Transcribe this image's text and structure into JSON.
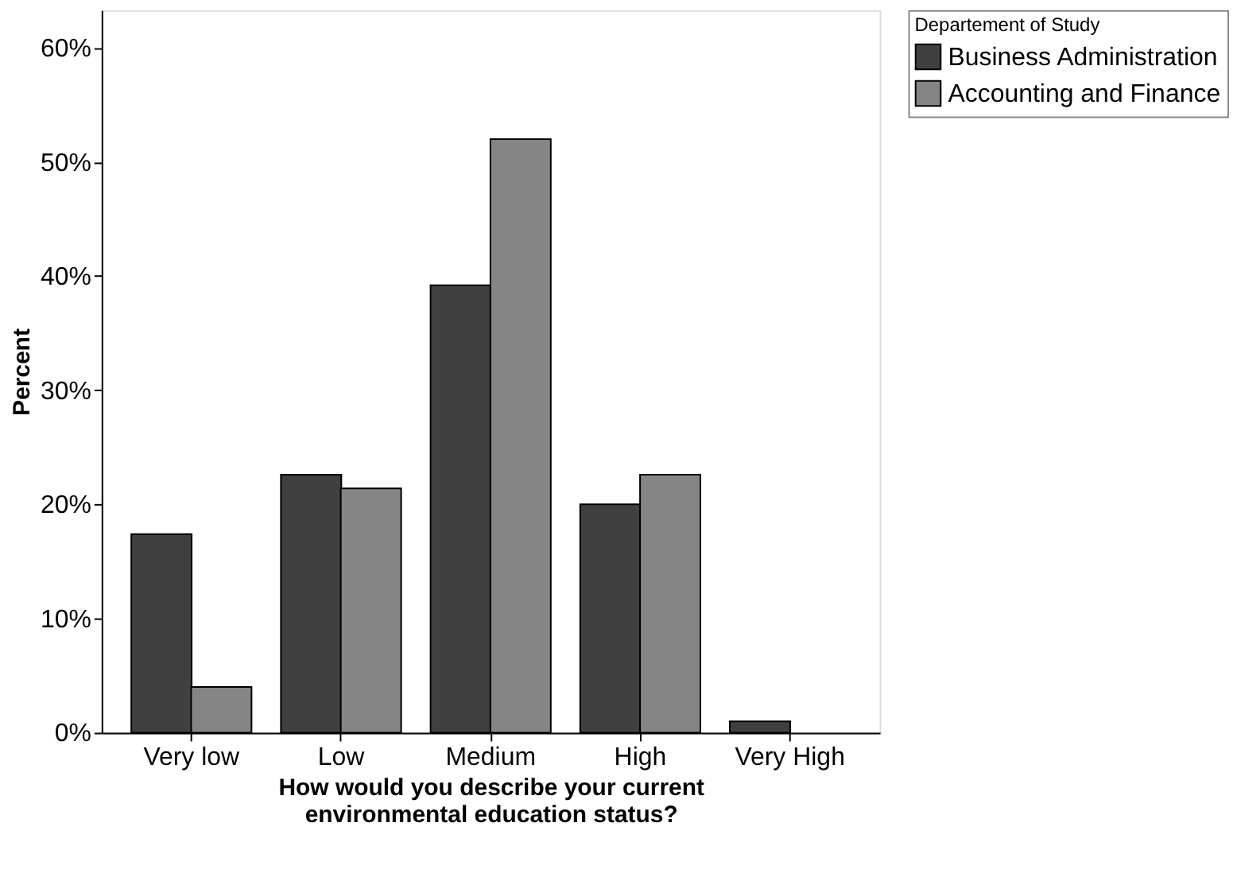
{
  "chart_data": {
    "type": "bar",
    "xlabel": "How would you describe your current environmental education status?",
    "ylabel": "Percent",
    "legend_title": "Departement of Study",
    "legend": "top right",
    "categories": [
      "Very low",
      "Low",
      "Medium",
      "High",
      "Very High"
    ],
    "series": [
      {
        "name": "Business Administration",
        "color": "#404040",
        "values": [
          17.4,
          22.6,
          39.2,
          20.0,
          1.0
        ]
      },
      {
        "name": "Accounting and Finance",
        "color": "#858585",
        "values": [
          4.0,
          21.4,
          52.0,
          22.6,
          null
        ]
      }
    ],
    "ylim": [
      0,
      63.3
    ],
    "yticks": [
      {
        "value": 0,
        "label": "0%"
      },
      {
        "value": 10,
        "label": "10%"
      },
      {
        "value": 20,
        "label": "20%"
      },
      {
        "value": 30,
        "label": "30%"
      },
      {
        "value": 40,
        "label": "40%"
      },
      {
        "value": 50,
        "label": "50%"
      },
      {
        "value": 60,
        "label": "60%"
      }
    ]
  }
}
